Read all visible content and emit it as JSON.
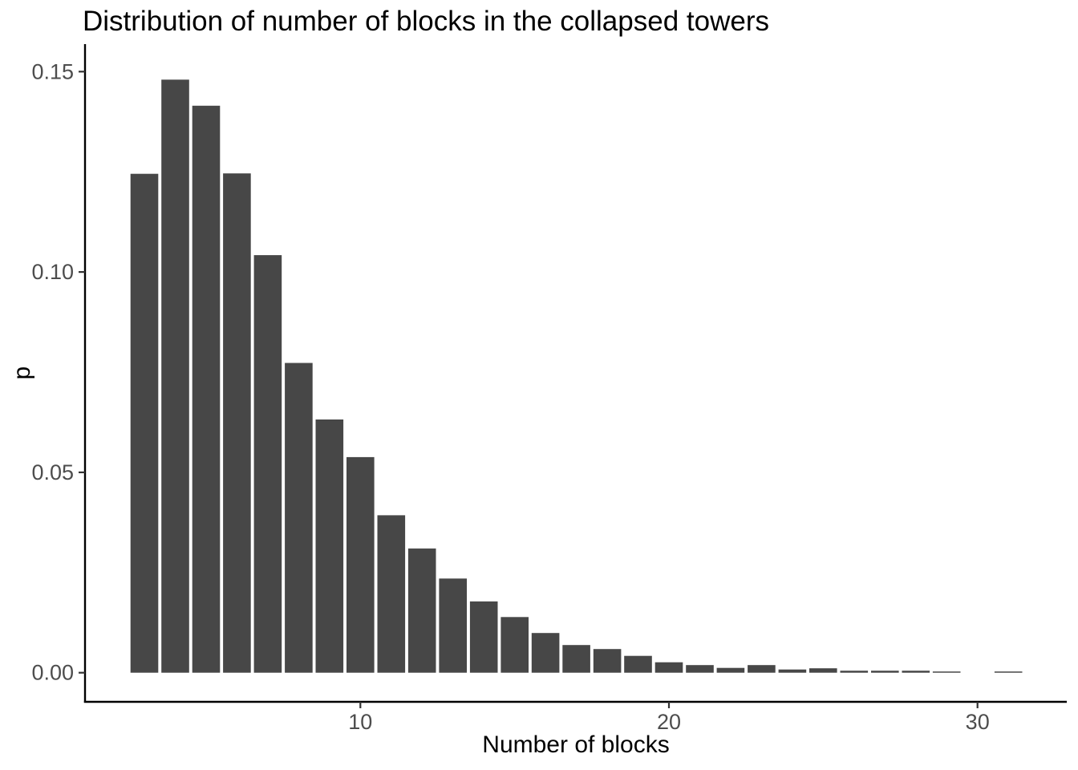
{
  "title": "Distribution of number of blocks in the collapsed towers",
  "chart_data": {
    "type": "bar",
    "title": "Distribution of number of blocks in the collapsed towers",
    "xlabel": "Number of blocks",
    "ylabel": "p",
    "x": [
      3,
      4,
      5,
      6,
      7,
      8,
      9,
      10,
      11,
      12,
      13,
      14,
      15,
      16,
      17,
      18,
      19,
      20,
      21,
      22,
      23,
      24,
      25,
      26,
      27,
      28,
      29,
      30,
      31
    ],
    "values": [
      0.1245,
      0.148,
      0.1415,
      0.1246,
      0.1042,
      0.0773,
      0.0632,
      0.0538,
      0.0393,
      0.031,
      0.0235,
      0.0178,
      0.0139,
      0.0099,
      0.0069,
      0.0059,
      0.0042,
      0.0026,
      0.0019,
      0.0012,
      0.0019,
      0.0008,
      0.0011,
      0.0005,
      0.0005,
      0.0005,
      0.0003,
      0.0,
      0.0003
    ],
    "x_ticks": [
      10,
      20,
      30
    ],
    "x_tick_labels": [
      "10",
      "20",
      "30"
    ],
    "y_ticks": [
      0.0,
      0.05,
      0.1,
      0.15
    ],
    "y_tick_labels": [
      "0.00",
      "0.05",
      "0.10",
      "0.15"
    ],
    "xlim": [
      1.1,
      32.9
    ],
    "ylim": [
      -0.0073,
      0.1566
    ],
    "grid": false,
    "legend": "none",
    "colors": {
      "bar_fill": "#474747",
      "axis_line": "#000000",
      "tick_mark": "#333333",
      "tick_label": "#4d4d4d",
      "title_text": "#000000",
      "background": "#ffffff"
    }
  }
}
